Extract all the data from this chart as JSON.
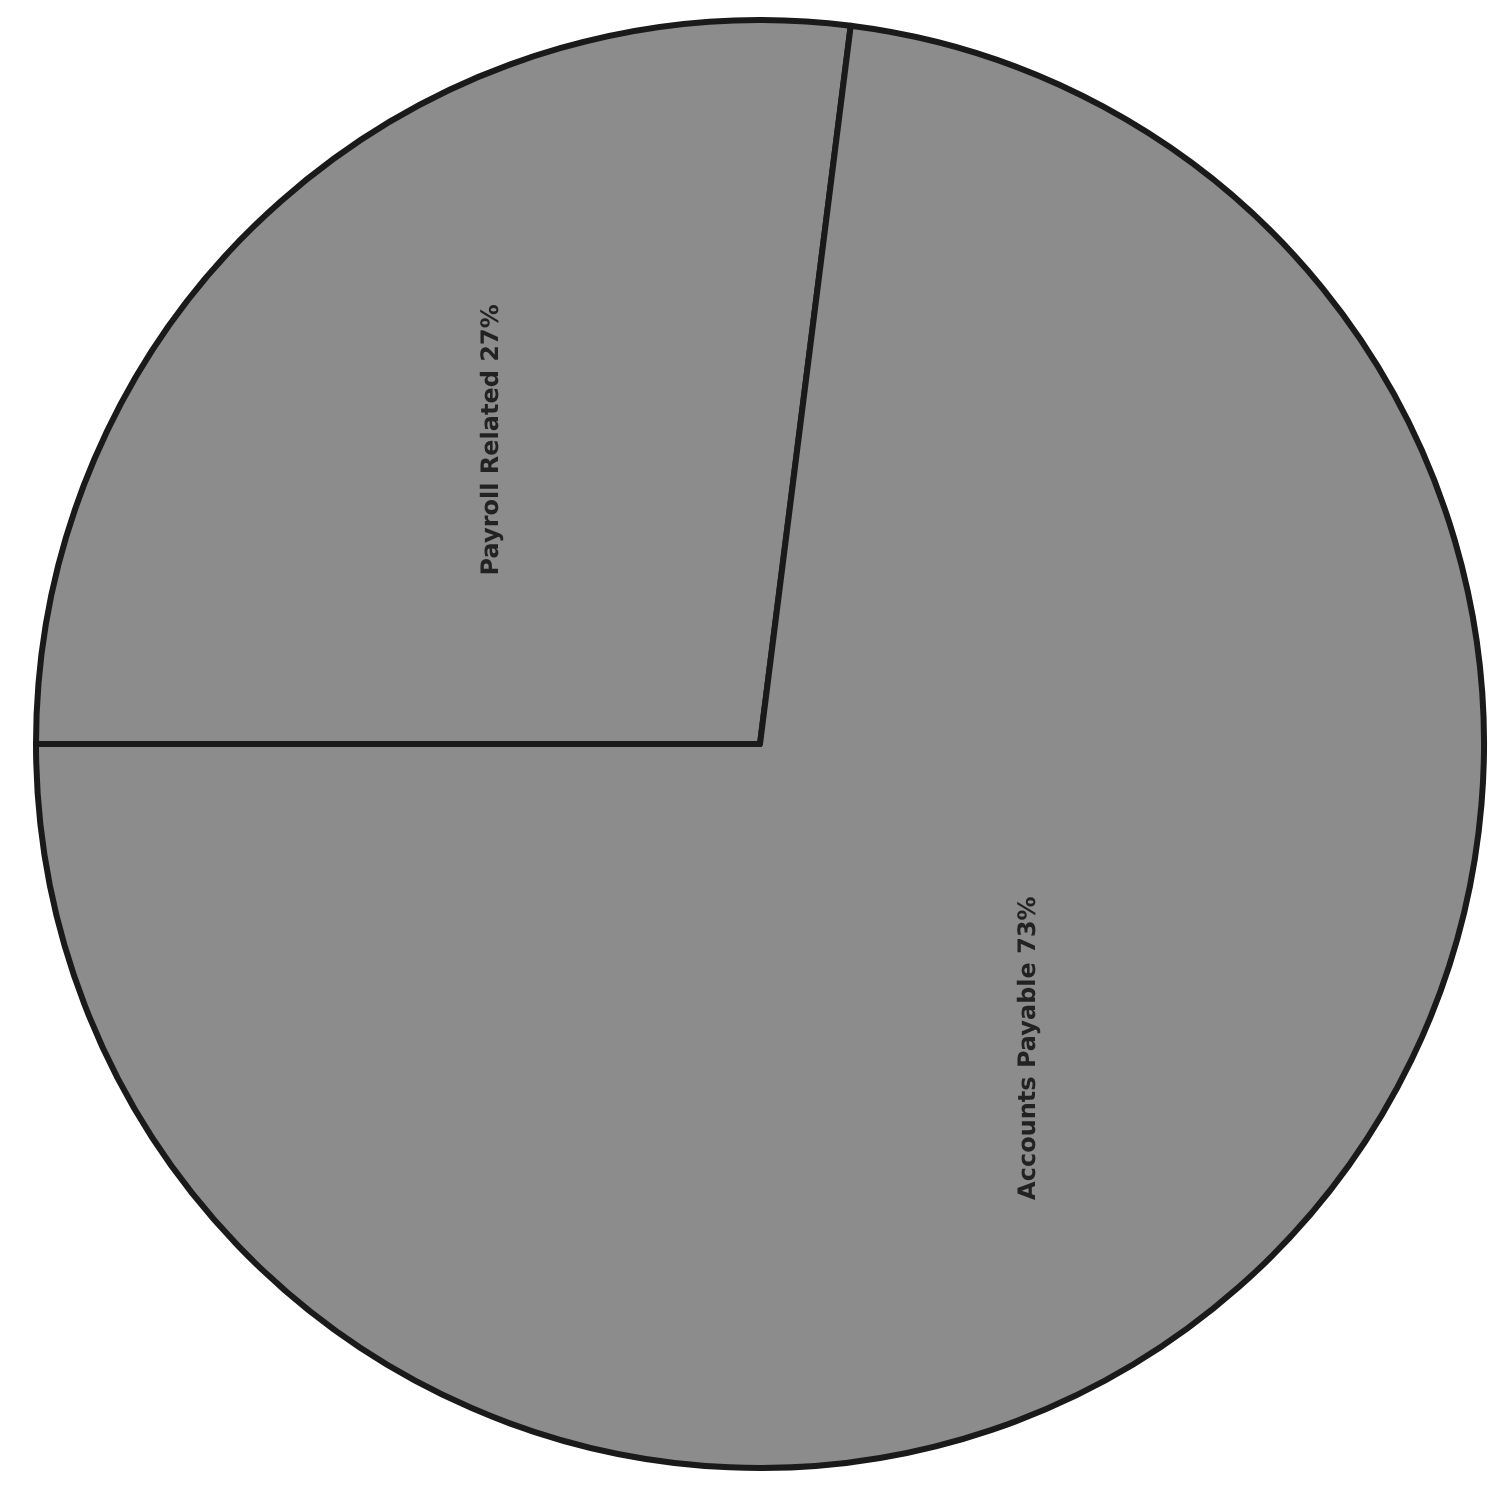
{
  "chart_data": {
    "type": "pie",
    "categories": [
      "Payroll Related",
      "Accounts Payable"
    ],
    "values": [
      27,
      73
    ],
    "colors": [
      "#8c8c8c",
      "#8c8c8c"
    ],
    "value_labels": [
      "27%",
      "73%"
    ]
  }
}
